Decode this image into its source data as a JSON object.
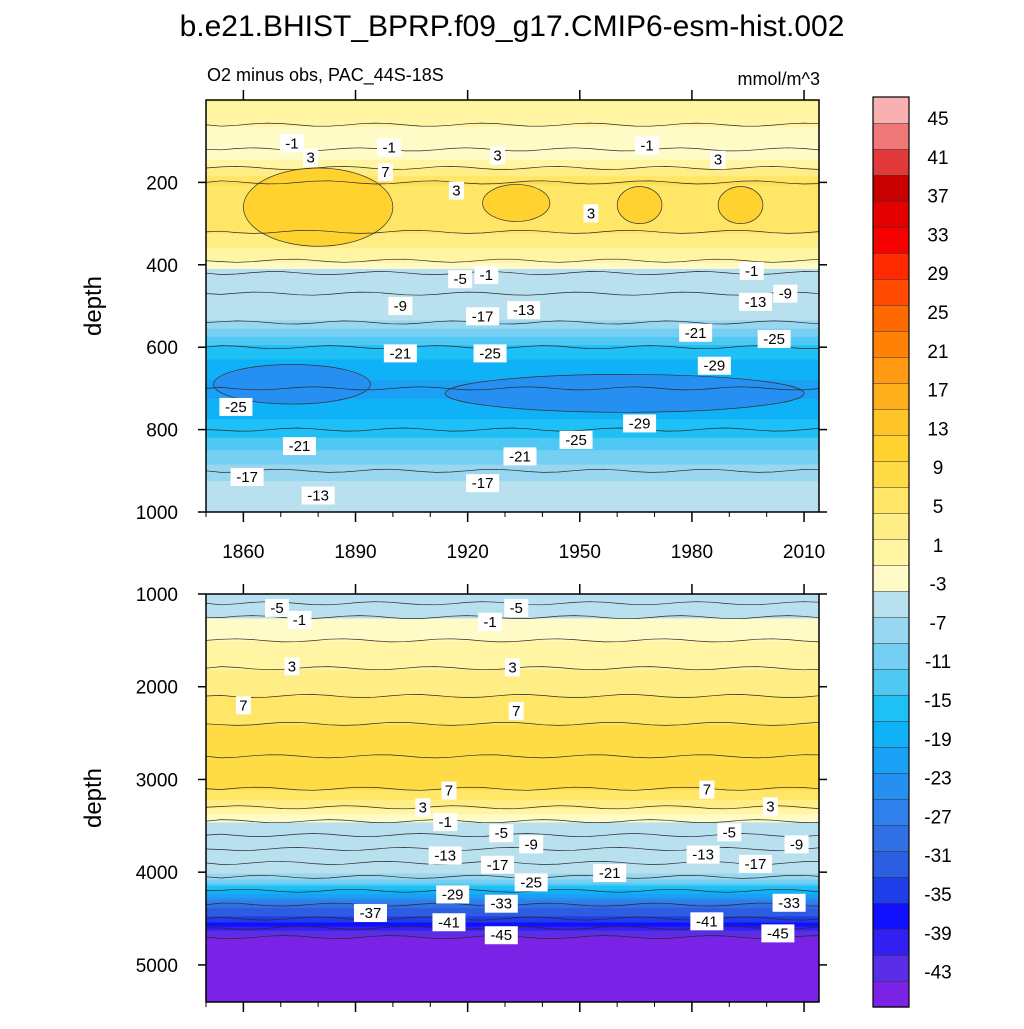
{
  "figure": {
    "title": "b.e21.BHIST_BPRP.f09_g17.CMIP6-esm-hist.002",
    "subtitle": "O2 minus obs, PAC_44S-18S",
    "units": "mmol/m^3"
  },
  "colors": {
    "negative": [
      "#7a22e6",
      "#5a2ee6",
      "#3220f0",
      "#1010ff",
      "#1f3de8",
      "#2d5de0",
      "#3170e4",
      "#2f80ec",
      "#258ff2",
      "#1aa0f5",
      "#10b2f7",
      "#1ec0f5",
      "#4fc8f3",
      "#74cff2",
      "#98d7ef",
      "#b8e0ef"
    ],
    "positive": [
      "#fffbc6",
      "#fff5a2",
      "#ffee85",
      "#ffe666",
      "#ffdc45",
      "#ffd22f",
      "#ffc428",
      "#ffaf1c",
      "#ff9a12",
      "#ff8207",
      "#ff6a00",
      "#ff4a00",
      "#ff2a00",
      "#f70000",
      "#e20000",
      "#c80000",
      "#e23a3a",
      "#ef7878",
      "#f8b0b0"
    ]
  },
  "chart_data": [
    {
      "type": "contour",
      "panel": "upper",
      "title": "O2 minus obs, PAC_44S-18S",
      "units": "mmol/m^3",
      "xlabel": "",
      "ylabel": "depth",
      "xlim": [
        1850,
        2014
      ],
      "ylim": [
        1000,
        0
      ],
      "xticks": [
        1860,
        1890,
        1920,
        1950,
        1980,
        2010
      ],
      "yticks": [
        200,
        400,
        600,
        800,
        1000
      ],
      "layers": [
        {
          "depth": 0,
          "value": 3
        },
        {
          "depth": 60,
          "value": 1
        },
        {
          "depth": 120,
          "value": -1
        },
        {
          "depth": 165,
          "value": 3
        },
        {
          "depth": 200,
          "value": 7
        },
        {
          "depth": 320,
          "value": 5
        },
        {
          "depth": 390,
          "value": 1
        },
        {
          "depth": 420,
          "value": -3
        },
        {
          "depth": 470,
          "value": -9
        },
        {
          "depth": 540,
          "value": -17
        },
        {
          "depth": 600,
          "value": -23
        },
        {
          "depth": 700,
          "value": -27
        },
        {
          "depth": 800,
          "value": -23
        },
        {
          "depth": 900,
          "value": -17
        },
        {
          "depth": 1000,
          "value": -13
        }
      ],
      "anomalies": [
        {
          "x": 1880,
          "depth": 260,
          "rx": 20,
          "rdepth": 95,
          "value": 9
        },
        {
          "x": 1933,
          "depth": 250,
          "rx": 9,
          "rdepth": 45,
          "value": 9
        },
        {
          "x": 1966,
          "depth": 255,
          "rx": 6,
          "rdepth": 45,
          "value": 9
        },
        {
          "x": 1993,
          "depth": 255,
          "rx": 6,
          "rdepth": 45,
          "value": 9
        },
        {
          "x": 1873,
          "depth": 690,
          "rx": 21,
          "rdepth": 48,
          "value": -29
        },
        {
          "x": 1962,
          "depth": 712,
          "rx": 48,
          "rdepth": 46,
          "value": -29
        }
      ],
      "labels": [
        {
          "x": 1873,
          "depth": 105,
          "text": "-1"
        },
        {
          "x": 1878,
          "depth": 140,
          "text": "3"
        },
        {
          "x": 1899,
          "depth": 115,
          "text": "-1"
        },
        {
          "x": 1928,
          "depth": 135,
          "text": "3"
        },
        {
          "x": 1968,
          "depth": 110,
          "text": "-1"
        },
        {
          "x": 1987,
          "depth": 145,
          "text": "3"
        },
        {
          "x": 1898,
          "depth": 175,
          "text": "7"
        },
        {
          "x": 1917,
          "depth": 220,
          "text": "3"
        },
        {
          "x": 1953,
          "depth": 275,
          "text": "3"
        },
        {
          "x": 1918,
          "depth": 435,
          "text": "-5"
        },
        {
          "x": 1925,
          "depth": 425,
          "text": "-1"
        },
        {
          "x": 1996,
          "depth": 415,
          "text": "-1"
        },
        {
          "x": 1902,
          "depth": 500,
          "text": "-9"
        },
        {
          "x": 1924,
          "depth": 525,
          "text": "-17"
        },
        {
          "x": 1935,
          "depth": 510,
          "text": "-13"
        },
        {
          "x": 1997,
          "depth": 490,
          "text": "-13"
        },
        {
          "x": 2005,
          "depth": 470,
          "text": "-9"
        },
        {
          "x": 1981,
          "depth": 565,
          "text": "-21"
        },
        {
          "x": 2002,
          "depth": 580,
          "text": "-25"
        },
        {
          "x": 1902,
          "depth": 615,
          "text": "-21"
        },
        {
          "x": 1926,
          "depth": 615,
          "text": "-25"
        },
        {
          "x": 1986,
          "depth": 645,
          "text": "-29"
        },
        {
          "x": 1858,
          "depth": 745,
          "text": "-25"
        },
        {
          "x": 1966,
          "depth": 785,
          "text": "-29"
        },
        {
          "x": 1949,
          "depth": 825,
          "text": "-25"
        },
        {
          "x": 1875,
          "depth": 840,
          "text": "-21"
        },
        {
          "x": 1934,
          "depth": 865,
          "text": "-21"
        },
        {
          "x": 1861,
          "depth": 915,
          "text": "-17"
        },
        {
          "x": 1924,
          "depth": 930,
          "text": "-17"
        },
        {
          "x": 1880,
          "depth": 960,
          "text": "-13"
        }
      ]
    },
    {
      "type": "contour",
      "panel": "lower",
      "xlabel": "",
      "ylabel": "depth",
      "xlim": [
        1850,
        2014
      ],
      "ylim": [
        5400,
        1000
      ],
      "yticks": [
        1000,
        2000,
        3000,
        4000,
        5000
      ],
      "layers": [
        {
          "depth": 1000,
          "value": -9
        },
        {
          "depth": 1100,
          "value": -5
        },
        {
          "depth": 1250,
          "value": -1
        },
        {
          "depth": 1500,
          "value": 1
        },
        {
          "depth": 1800,
          "value": 3
        },
        {
          "depth": 2100,
          "value": 5
        },
        {
          "depth": 2400,
          "value": 7
        },
        {
          "depth": 2750,
          "value": 9
        },
        {
          "depth": 3100,
          "value": 7
        },
        {
          "depth": 3300,
          "value": 3
        },
        {
          "depth": 3450,
          "value": -1
        },
        {
          "depth": 3600,
          "value": -5
        },
        {
          "depth": 3750,
          "value": -9
        },
        {
          "depth": 3900,
          "value": -13
        },
        {
          "depth": 4050,
          "value": -17
        },
        {
          "depth": 4200,
          "value": -25
        },
        {
          "depth": 4350,
          "value": -33
        },
        {
          "depth": 4500,
          "value": -37
        },
        {
          "depth": 4600,
          "value": -41
        },
        {
          "depth": 4700,
          "value": -45
        },
        {
          "depth": 5400,
          "value": -45
        }
      ],
      "labels": [
        {
          "x": 1869,
          "depth": 1150,
          "text": "-5"
        },
        {
          "x": 1875,
          "depth": 1280,
          "text": "-1"
        },
        {
          "x": 1933,
          "depth": 1150,
          "text": "-5"
        },
        {
          "x": 1926,
          "depth": 1300,
          "text": "-1"
        },
        {
          "x": 1873,
          "depth": 1780,
          "text": "3"
        },
        {
          "x": 1932,
          "depth": 1790,
          "text": "3"
        },
        {
          "x": 1860,
          "depth": 2200,
          "text": "7"
        },
        {
          "x": 1933,
          "depth": 2260,
          "text": "7"
        },
        {
          "x": 1915,
          "depth": 3120,
          "text": "7"
        },
        {
          "x": 1984,
          "depth": 3110,
          "text": "7"
        },
        {
          "x": 1908,
          "depth": 3300,
          "text": "3"
        },
        {
          "x": 2001,
          "depth": 3290,
          "text": "3"
        },
        {
          "x": 1914,
          "depth": 3460,
          "text": "-1"
        },
        {
          "x": 1929,
          "depth": 3580,
          "text": "-5"
        },
        {
          "x": 1990,
          "depth": 3570,
          "text": "-5"
        },
        {
          "x": 1937,
          "depth": 3700,
          "text": "-9"
        },
        {
          "x": 2008,
          "depth": 3700,
          "text": "-9"
        },
        {
          "x": 1914,
          "depth": 3820,
          "text": "-13"
        },
        {
          "x": 1928,
          "depth": 3920,
          "text": "-17"
        },
        {
          "x": 1983,
          "depth": 3810,
          "text": "-13"
        },
        {
          "x": 1997,
          "depth": 3910,
          "text": "-17"
        },
        {
          "x": 1958,
          "depth": 4010,
          "text": "-21"
        },
        {
          "x": 1937,
          "depth": 4110,
          "text": "-25"
        },
        {
          "x": 1916,
          "depth": 4240,
          "text": "-29"
        },
        {
          "x": 1929,
          "depth": 4340,
          "text": "-33"
        },
        {
          "x": 2006,
          "depth": 4330,
          "text": "-33"
        },
        {
          "x": 1894,
          "depth": 4440,
          "text": "-37"
        },
        {
          "x": 1915,
          "depth": 4540,
          "text": "-41"
        },
        {
          "x": 1984,
          "depth": 4530,
          "text": "-41"
        },
        {
          "x": 1929,
          "depth": 4680,
          "text": "-45"
        },
        {
          "x": 2003,
          "depth": 4660,
          "text": "-45"
        }
      ]
    }
  ],
  "colorbar": {
    "labels": [
      "45",
      "41",
      "37",
      "33",
      "29",
      "25",
      "21",
      "17",
      "13",
      "9",
      "5",
      "1",
      "-3",
      "-7",
      "-11",
      "-15",
      "-19",
      "-23",
      "-27",
      "-31",
      "-35",
      "-39",
      "-43"
    ]
  }
}
